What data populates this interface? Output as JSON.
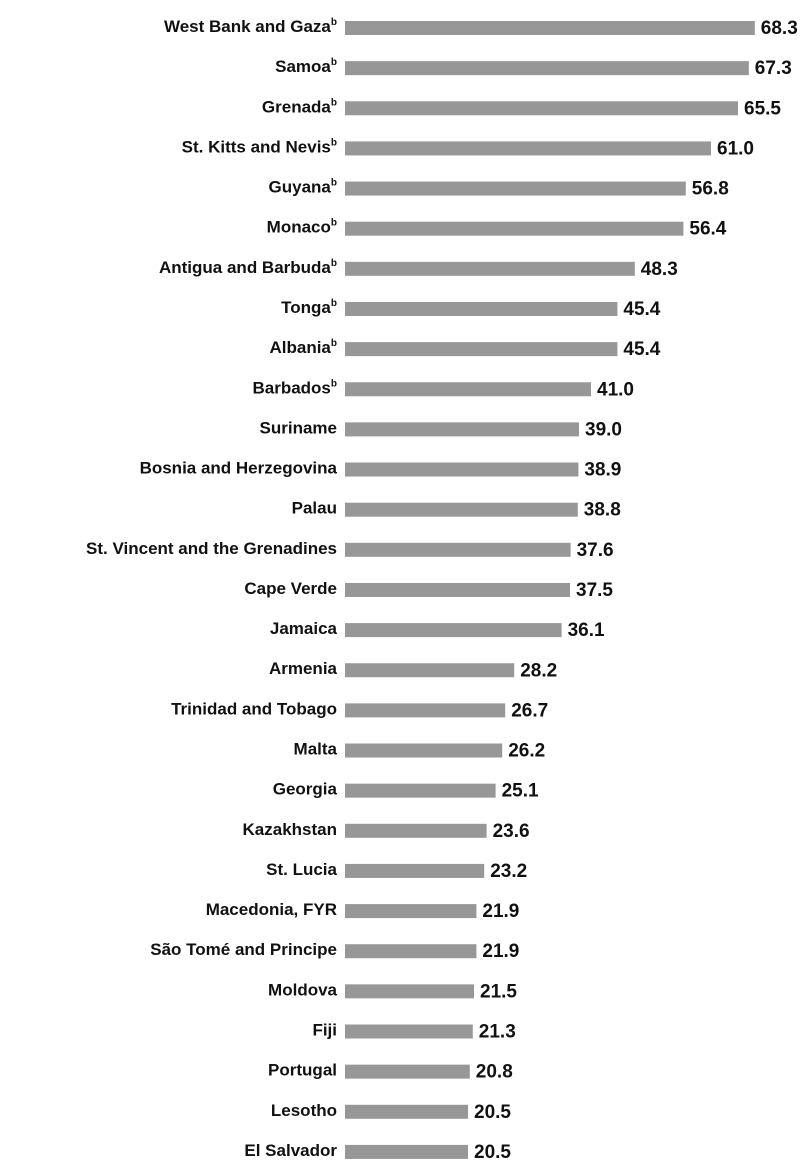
{
  "chart_data": {
    "type": "bar",
    "orientation": "horizontal",
    "categories": [
      "West Bank and Gaza",
      "Samoa",
      "Grenada",
      "St. Kitts and Nevis",
      "Guyana",
      "Monaco",
      "Antigua and Barbuda",
      "Tonga",
      "Albania",
      "Barbados",
      "Suriname",
      "Bosnia and Herzegovina",
      "Palau",
      "St. Vincent and the Grenadines",
      "Cape Verde",
      "Jamaica",
      "Armenia",
      "Trinidad and Tobago",
      "Malta",
      "Georgia",
      "Kazakhstan",
      "St. Lucia",
      "Macedonia, FYR",
      "São Tomé and Principe",
      "Moldova",
      "Fiji",
      "Portugal",
      "Lesotho",
      "El Salvador"
    ],
    "footnote_marks": [
      "b",
      "b",
      "b",
      "b",
      "b",
      "b",
      "b",
      "b",
      "b",
      "b",
      null,
      null,
      null,
      null,
      null,
      null,
      null,
      null,
      null,
      null,
      null,
      null,
      null,
      null,
      null,
      null,
      null,
      null,
      null
    ],
    "values": [
      68.3,
      67.3,
      65.5,
      61.0,
      56.8,
      56.4,
      48.3,
      45.4,
      45.4,
      41.0,
      39.0,
      38.9,
      38.8,
      37.6,
      37.5,
      36.1,
      28.2,
      26.7,
      26.2,
      25.1,
      23.6,
      23.2,
      21.9,
      21.9,
      21.5,
      21.3,
      20.8,
      20.5,
      20.5
    ],
    "value_labels": [
      "68.3",
      "67.3",
      "65.5",
      "61.0",
      "56.8",
      "56.4",
      "48.3",
      "45.4",
      "45.4",
      "41.0",
      "39.0",
      "38.9",
      "38.8",
      "37.6",
      "37.5",
      "36.1",
      "28.2",
      "26.7",
      "26.2",
      "25.1",
      "23.6",
      "23.2",
      "21.9",
      "21.9",
      "21.5",
      "21.3",
      "20.8",
      "20.5",
      "20.5"
    ],
    "color": "#979797",
    "xlim": [
      0,
      70
    ]
  }
}
